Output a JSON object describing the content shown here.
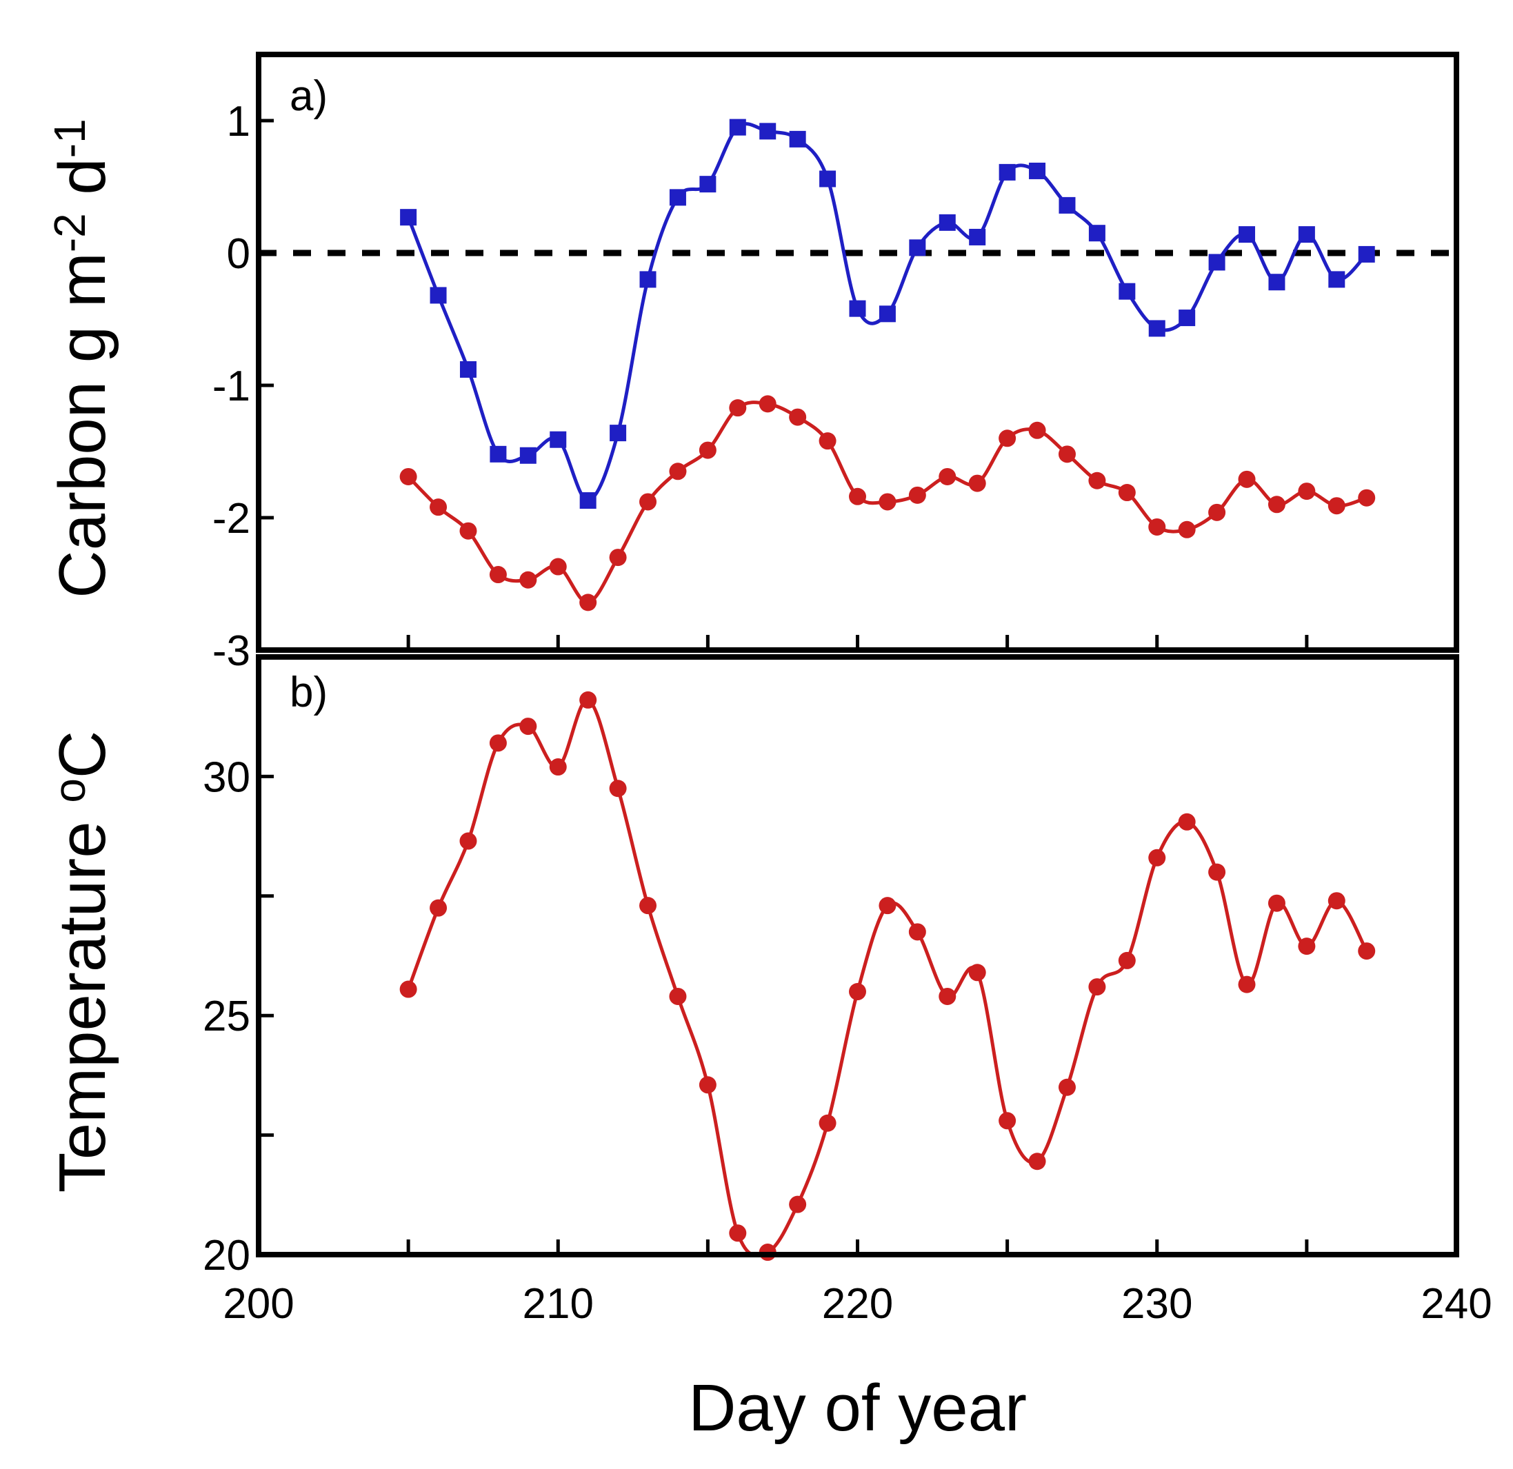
{
  "chart_data": [
    {
      "panel": "a)",
      "type": "line",
      "ylabel": "Carbon g m^-2 d^-1",
      "ylabel_parts": {
        "base": "Carbon g m",
        "exp1": "-2",
        "mid": " d",
        "exp2": "-1"
      },
      "xlim": [
        200,
        240
      ],
      "ylim": [
        -3,
        1.5
      ],
      "y_ticks": [
        1,
        0,
        -1,
        -2,
        -3
      ],
      "y_tick_labels": [
        "1",
        "0",
        "-1",
        "-2",
        "-3"
      ],
      "reference_line": {
        "y": 0,
        "style": "dashed",
        "color": "#000000"
      },
      "grid": false,
      "x": [
        205,
        206,
        207,
        208,
        209,
        210,
        211,
        212,
        213,
        214,
        215,
        216,
        217,
        218,
        219,
        220,
        221,
        222,
        223,
        224,
        225,
        226,
        227,
        228,
        229,
        230,
        231,
        232,
        233,
        234,
        235,
        236,
        237
      ],
      "series": [
        {
          "color": "#1f1fc4",
          "marker": "square",
          "values": [
            0.27,
            -0.32,
            -0.88,
            -1.52,
            -1.53,
            -1.41,
            -1.87,
            -1.36,
            -0.2,
            0.42,
            0.52,
            0.95,
            0.92,
            0.86,
            0.56,
            -0.42,
            -0.46,
            0.04,
            0.23,
            0.12,
            0.61,
            0.62,
            0.36,
            0.15,
            -0.29,
            -0.57,
            -0.49,
            -0.07,
            0.14,
            -0.22,
            0.14,
            -0.2,
            -0.01
          ]
        },
        {
          "color": "#cc1f1f",
          "marker": "circle",
          "values": [
            -1.69,
            -1.92,
            -2.1,
            -2.43,
            -2.47,
            -2.37,
            -2.64,
            -2.3,
            -1.88,
            -1.65,
            -1.49,
            -1.17,
            -1.14,
            -1.24,
            -1.42,
            -1.84,
            -1.88,
            -1.83,
            -1.69,
            -1.74,
            -1.4,
            -1.34,
            -1.52,
            -1.72,
            -1.81,
            -2.07,
            -2.09,
            -1.96,
            -1.71,
            -1.9,
            -1.8,
            -1.91,
            -1.85
          ]
        }
      ]
    },
    {
      "panel": "b)",
      "type": "line",
      "ylabel": "Temperature °C",
      "ylabel_parts": {
        "base": "Temperature ",
        "exp1": "o",
        "mid": "C"
      },
      "xlabel": "Day of year",
      "xlim": [
        200,
        240
      ],
      "ylim": [
        20,
        32.5
      ],
      "y_ticks": [
        30,
        25,
        20
      ],
      "y_tick_labels": [
        "30",
        "25",
        "20"
      ],
      "y_minor_ticks": [
        27.5,
        22.5
      ],
      "x_ticks": [
        200,
        210,
        220,
        230,
        240
      ],
      "x_tick_labels": [
        "200",
        "210",
        "220",
        "230",
        "240"
      ],
      "x_minor_ticks": [
        205,
        206,
        207,
        208,
        209,
        210,
        211,
        212,
        213,
        214,
        215,
        216,
        217,
        218,
        219,
        220,
        221,
        222,
        223,
        224,
        225,
        226,
        227,
        228,
        229,
        230,
        231,
        232,
        233,
        234,
        235,
        236,
        237
      ],
      "grid": false,
      "x": [
        205,
        206,
        207,
        208,
        209,
        210,
        211,
        212,
        213,
        214,
        215,
        216,
        217,
        218,
        219,
        220,
        221,
        222,
        223,
        224,
        225,
        226,
        227,
        228,
        229,
        230,
        231,
        232,
        233,
        234,
        235,
        236,
        237
      ],
      "series": [
        {
          "color": "#cc1f1f",
          "marker": "circle",
          "values": [
            25.55,
            27.25,
            28.65,
            30.7,
            31.05,
            30.2,
            31.6,
            29.75,
            27.3,
            25.4,
            23.55,
            20.45,
            20.05,
            21.05,
            22.75,
            25.5,
            27.3,
            26.75,
            25.4,
            25.9,
            22.8,
            21.95,
            23.5,
            25.6,
            26.15,
            28.3,
            29.05,
            28.0,
            25.65,
            27.35,
            26.45,
            27.4,
            26.35
          ]
        }
      ]
    }
  ]
}
